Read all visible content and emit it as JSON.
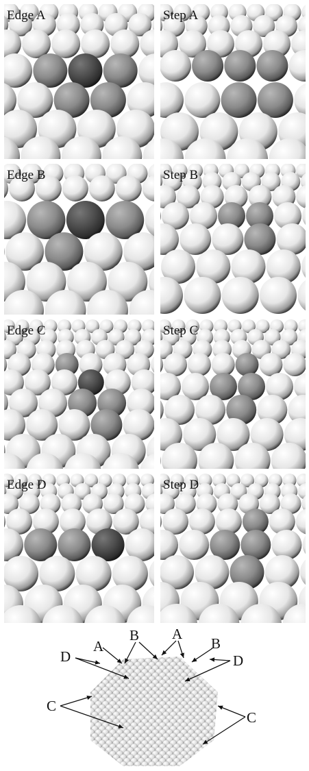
{
  "panels": [
    {
      "label": "Edge A",
      "kind": "edge",
      "variant": "A"
    },
    {
      "label": "Step A",
      "kind": "step",
      "variant": "A"
    },
    {
      "label": "Edge B",
      "kind": "edge",
      "variant": "B"
    },
    {
      "label": "Step B",
      "kind": "step",
      "variant": "B"
    },
    {
      "label": "Edge C",
      "kind": "edge",
      "variant": "C"
    },
    {
      "label": "Step C",
      "kind": "step",
      "variant": "C"
    },
    {
      "label": "Edge D",
      "kind": "edge",
      "variant": "D"
    },
    {
      "label": "Step D",
      "kind": "step",
      "variant": "D"
    }
  ],
  "cluster": {
    "labels": [
      "A",
      "B",
      "A",
      "B",
      "D",
      "D",
      "C",
      "C"
    ]
  },
  "colors": {
    "atom_light": "#f4f4f4",
    "atom_gray": "#8f8f8f",
    "atom_dark": "#3d3d3d",
    "background": "#ffffff"
  }
}
